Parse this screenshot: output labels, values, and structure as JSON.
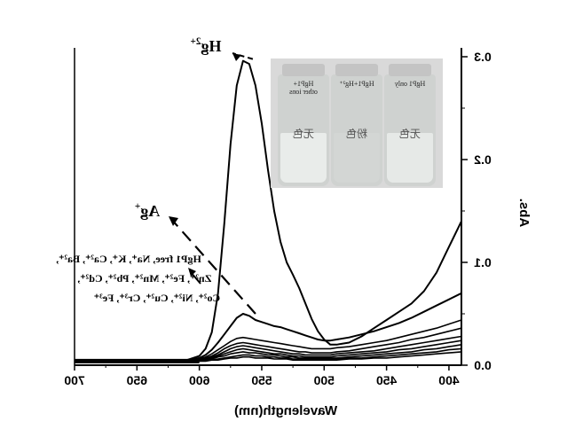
{
  "chart_data": {
    "type": "line",
    "xlabel": "Wavelength(nm)",
    "ylabel": "Abs.",
    "xlim": [
      700,
      390
    ],
    "ylim": [
      0,
      0.3
    ],
    "x_ticks": [
      "700",
      "650",
      "600",
      "550",
      "500",
      "450",
      "400"
    ],
    "y_ticks": [
      "0.0",
      "0.1",
      "0.2",
      "0.3"
    ],
    "x": [
      700,
      650,
      620,
      610,
      600,
      595,
      590,
      585,
      580,
      575,
      570,
      565,
      560,
      555,
      550,
      545,
      540,
      535,
      530,
      525,
      520,
      515,
      510,
      505,
      500,
      495,
      490,
      480,
      470,
      460,
      450,
      440,
      430,
      420,
      410,
      400,
      390
    ],
    "series": [
      {
        "name": "Hg2+",
        "values": [
          0.003,
          0.003,
          0.004,
          0.005,
          0.009,
          0.016,
          0.032,
          0.07,
          0.138,
          0.215,
          0.272,
          0.296,
          0.293,
          0.272,
          0.235,
          0.19,
          0.15,
          0.12,
          0.1,
          0.088,
          0.075,
          0.06,
          0.045,
          0.033,
          0.025,
          0.02,
          0.02,
          0.022,
          0.028,
          0.036,
          0.044,
          0.052,
          0.06,
          0.072,
          0.09,
          0.115,
          0.14
        ]
      },
      {
        "name": "Ag+",
        "values": [
          0.003,
          0.003,
          0.004,
          0.005,
          0.007,
          0.01,
          0.015,
          0.022,
          0.03,
          0.038,
          0.046,
          0.05,
          0.048,
          0.044,
          0.042,
          0.04,
          0.038,
          0.037,
          0.035,
          0.033,
          0.031,
          0.029,
          0.027,
          0.025,
          0.024,
          0.024,
          0.025,
          0.027,
          0.03,
          0.033,
          0.037,
          0.041,
          0.046,
          0.052,
          0.058,
          0.064,
          0.07
        ]
      },
      {
        "name": "",
        "values": [
          0.003,
          0.003,
          0.004,
          0.005,
          0.006,
          0.008,
          0.011,
          0.015,
          0.019,
          0.023,
          0.026,
          0.027,
          0.026,
          0.025,
          0.024,
          0.023,
          0.022,
          0.021,
          0.02,
          0.019,
          0.018,
          0.017,
          0.016,
          0.016,
          0.016,
          0.016,
          0.017,
          0.018,
          0.02,
          0.022,
          0.024,
          0.027,
          0.03,
          0.033,
          0.036,
          0.04,
          0.044
        ]
      },
      {
        "name": "",
        "values": [
          0.003,
          0.003,
          0.004,
          0.005,
          0.006,
          0.007,
          0.009,
          0.012,
          0.016,
          0.019,
          0.021,
          0.022,
          0.021,
          0.02,
          0.019,
          0.018,
          0.017,
          0.016,
          0.015,
          0.014,
          0.013,
          0.013,
          0.012,
          0.012,
          0.012,
          0.012,
          0.013,
          0.014,
          0.016,
          0.018,
          0.02,
          0.022,
          0.025,
          0.027,
          0.03,
          0.033,
          0.036
        ]
      },
      {
        "name": "",
        "values": [
          0.003,
          0.003,
          0.004,
          0.005,
          0.005,
          0.006,
          0.008,
          0.01,
          0.013,
          0.016,
          0.018,
          0.019,
          0.018,
          0.017,
          0.016,
          0.015,
          0.014,
          0.013,
          0.012,
          0.011,
          0.011,
          0.01,
          0.01,
          0.01,
          0.01,
          0.01,
          0.011,
          0.012,
          0.013,
          0.014,
          0.016,
          0.018,
          0.02,
          0.022,
          0.024,
          0.026,
          0.028
        ]
      },
      {
        "name": "",
        "values": [
          0.003,
          0.003,
          0.004,
          0.004,
          0.005,
          0.006,
          0.007,
          0.009,
          0.011,
          0.013,
          0.015,
          0.016,
          0.015,
          0.014,
          0.013,
          0.012,
          0.011,
          0.011,
          0.01,
          0.009,
          0.009,
          0.008,
          0.008,
          0.008,
          0.008,
          0.008,
          0.009,
          0.01,
          0.011,
          0.012,
          0.013,
          0.015,
          0.016,
          0.018,
          0.02,
          0.022,
          0.024
        ]
      },
      {
        "name": "",
        "values": [
          0.003,
          0.003,
          0.004,
          0.004,
          0.005,
          0.005,
          0.006,
          0.008,
          0.009,
          0.011,
          0.012,
          0.013,
          0.012,
          0.012,
          0.011,
          0.01,
          0.01,
          0.009,
          0.008,
          0.008,
          0.007,
          0.007,
          0.007,
          0.007,
          0.007,
          0.007,
          0.007,
          0.008,
          0.009,
          0.01,
          0.011,
          0.012,
          0.013,
          0.015,
          0.016,
          0.018,
          0.02
        ]
      },
      {
        "name": "",
        "values": [
          0.003,
          0.003,
          0.003,
          0.004,
          0.004,
          0.005,
          0.005,
          0.006,
          0.007,
          0.008,
          0.009,
          0.01,
          0.01,
          0.009,
          0.009,
          0.008,
          0.008,
          0.007,
          0.007,
          0.006,
          0.006,
          0.006,
          0.006,
          0.006,
          0.006,
          0.006,
          0.006,
          0.007,
          0.007,
          0.008,
          0.009,
          0.01,
          0.011,
          0.012,
          0.013,
          0.015,
          0.016
        ]
      },
      {
        "name": "",
        "values": [
          0.003,
          0.003,
          0.003,
          0.003,
          0.004,
          0.004,
          0.005,
          0.005,
          0.006,
          0.007,
          0.007,
          0.008,
          0.008,
          0.007,
          0.007,
          0.007,
          0.006,
          0.006,
          0.006,
          0.005,
          0.005,
          0.005,
          0.005,
          0.005,
          0.005,
          0.005,
          0.005,
          0.006,
          0.006,
          0.007,
          0.007,
          0.008,
          0.009,
          0.01,
          0.011,
          0.012,
          0.013
        ]
      }
    ],
    "annotations": {
      "hg": {
        "base": "Hg",
        "sup": "2+"
      },
      "ag": {
        "base": "Ag",
        "sup": "+"
      },
      "others": [
        "HgP1 free, Na⁺, K⁺, Ca²⁺, Ba²⁺,",
        "Zn²⁺, Fe²⁺, Mn²⁺, Pb²⁺, Cd²⁺,",
        "Co²⁺, Ni²⁺, Cu²⁺, Cr³⁺, Fe³⁺"
      ]
    },
    "grid": false,
    "mirrored": true
  },
  "inset": {
    "vials": [
      {
        "label": "HgP1+\nother ions",
        "color_text": "无色",
        "liquid": "#e9ecea"
      },
      {
        "label": "HgP1+Hg²⁺",
        "color_text": "粉色",
        "liquid": "#d3d6d4"
      },
      {
        "label": "HgP1 only",
        "color_text": "无色",
        "liquid": "#e6e9e7"
      }
    ]
  }
}
